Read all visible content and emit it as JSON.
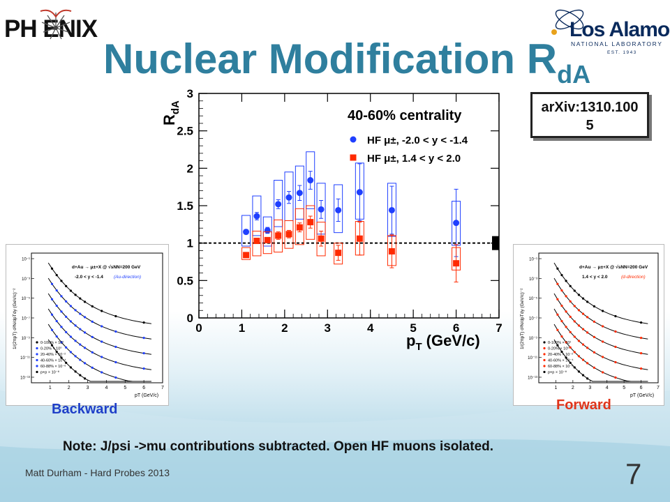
{
  "slide": {
    "title_main": "Nuclear Modification R",
    "title_sub": "dA",
    "arxiv": "arXiv:1310.1005",
    "caption_left": "Backward",
    "caption_right": "Forward",
    "note": "Note: J/psi ->mu contributions subtracted.  Open HF muons isolated.",
    "footer": "Matt Durham - Hard Probes 2013",
    "page_number": "7",
    "colors": {
      "title": "#2f7f9e",
      "blue": "#1f3fff",
      "red": "#ff2a00"
    }
  },
  "logos": {
    "left_text": "PH   ENIX",
    "right_name": "Los Alamos",
    "right_sub": "NATIONAL LABORATORY",
    "right_est": "EST. 1943"
  },
  "chart_data": [
    {
      "type": "scatter",
      "title": "40-60% centrality",
      "ylabel_main": "R",
      "ylabel_sub": "dA",
      "xlabel_main": "p",
      "xlabel_sub": "T",
      "xlabel_unit": "(GeV/c)",
      "xlim": [
        0,
        7
      ],
      "ylim": [
        0,
        3
      ],
      "xticks": [
        "0",
        "1",
        "2",
        "3",
        "4",
        "5",
        "6",
        "7"
      ],
      "yticks": [
        "0",
        "0.5",
        "1",
        "1.5",
        "2",
        "2.5",
        "3"
      ],
      "reference_line": 1,
      "legend_position": "top-right",
      "series": [
        {
          "name": "HF μ±, -2.0 < y < -1.4",
          "color": "#1f3fff",
          "marker": "circle",
          "x": [
            1.1,
            1.35,
            1.6,
            1.85,
            2.1,
            2.35,
            2.6,
            2.85,
            3.25,
            3.75,
            4.5,
            6.0
          ],
          "y": [
            1.15,
            1.36,
            1.17,
            1.52,
            1.61,
            1.67,
            1.84,
            1.45,
            1.44,
            1.68,
            1.44,
            1.27
          ],
          "stat_err": [
            0.03,
            0.05,
            0.04,
            0.06,
            0.08,
            0.1,
            0.12,
            0.12,
            0.15,
            0.38,
            0.32,
            0.45
          ],
          "sys_low": [
            0.96,
            1.1,
            0.96,
            1.22,
            1.3,
            1.32,
            1.46,
            1.12,
            1.14,
            1.32,
            1.09,
            0.97
          ],
          "sys_high": [
            1.37,
            1.63,
            1.35,
            1.84,
            1.95,
            2.03,
            2.22,
            1.8,
            1.78,
            2.07,
            1.8,
            1.56
          ]
        },
        {
          "name": "HF μ±,  1.4 < y < 2.0",
          "color": "#ff2a00",
          "marker": "square",
          "x": [
            1.1,
            1.35,
            1.6,
            1.85,
            2.1,
            2.35,
            2.6,
            2.85,
            3.25,
            3.75,
            4.5,
            6.0
          ],
          "y": [
            0.84,
            1.03,
            1.04,
            1.1,
            1.12,
            1.21,
            1.28,
            1.06,
            0.87,
            1.06,
            0.89,
            0.73
          ],
          "stat_err": [
            0.03,
            0.03,
            0.03,
            0.05,
            0.05,
            0.06,
            0.08,
            0.1,
            0.1,
            0.22,
            0.22,
            0.25
          ],
          "sys_low": [
            0.78,
            0.83,
            0.86,
            0.88,
            0.93,
            0.98,
            1.05,
            0.83,
            0.72,
            0.84,
            0.7,
            0.64
          ],
          "sys_high": [
            0.94,
            1.16,
            1.15,
            1.31,
            1.3,
            1.46,
            1.5,
            1.28,
            1.0,
            1.29,
            1.1,
            0.94
          ]
        }
      ]
    },
    {
      "type": "scatter",
      "panel": "backward",
      "header": "d+Au → μ±+X @ √sNN=200 GeV",
      "range": "-2.0 < y < -1.4",
      "direction": "(Au-direction)",
      "xlabel": "pT (GeV/c)",
      "ylabel": "1/(2πpT) d²N/dpTdy (GeV/c)⁻²",
      "xticks": [
        "1",
        "2",
        "3",
        "4",
        "5",
        "6",
        "7"
      ],
      "yticks": [
        "10⁻¹",
        "10⁻³",
        "10⁻⁵",
        "10⁻⁷",
        "10⁻⁹",
        "10⁻¹¹",
        "10⁻¹³"
      ],
      "legend": [
        "0-100% × 10²",
        "0-20% × 10⁰",
        "20-40% × 10⁻²",
        "40-60% × 10⁻⁴",
        "60-88% × 10⁻⁶",
        "p+p × 10⁻⁸"
      ],
      "series_colors": [
        "#000000",
        "#1f3fff",
        "#1f3fff",
        "#1f3fff",
        "#1f3fff",
        "#000000"
      ]
    },
    {
      "type": "scatter",
      "panel": "forward",
      "header": "d+Au → μ±+X @ √sNN=200 GeV",
      "range": "1.4 < y < 2.0",
      "direction": "(d-direction)",
      "xlabel": "pT (GeV/c)",
      "ylabel": "1/(2πpT) d²N/dpTdy (GeV/c)⁻²",
      "xticks": [
        "1",
        "2",
        "3",
        "4",
        "5",
        "6",
        "7"
      ],
      "yticks": [
        "10⁻¹",
        "10⁻³",
        "10⁻⁵",
        "10⁻⁷",
        "10⁻⁹",
        "10⁻¹¹",
        "10⁻¹³"
      ],
      "legend": [
        "0-100% × 10²",
        "0-20% × 10⁰",
        "20-40% × 10⁻²",
        "40-60% × 10⁻⁴",
        "60-88% × 10⁻⁶",
        "p+p × 10⁻⁸"
      ],
      "series_colors": [
        "#000000",
        "#ff2a00",
        "#ff2a00",
        "#ff2a00",
        "#ff2a00",
        "#000000"
      ]
    }
  ]
}
